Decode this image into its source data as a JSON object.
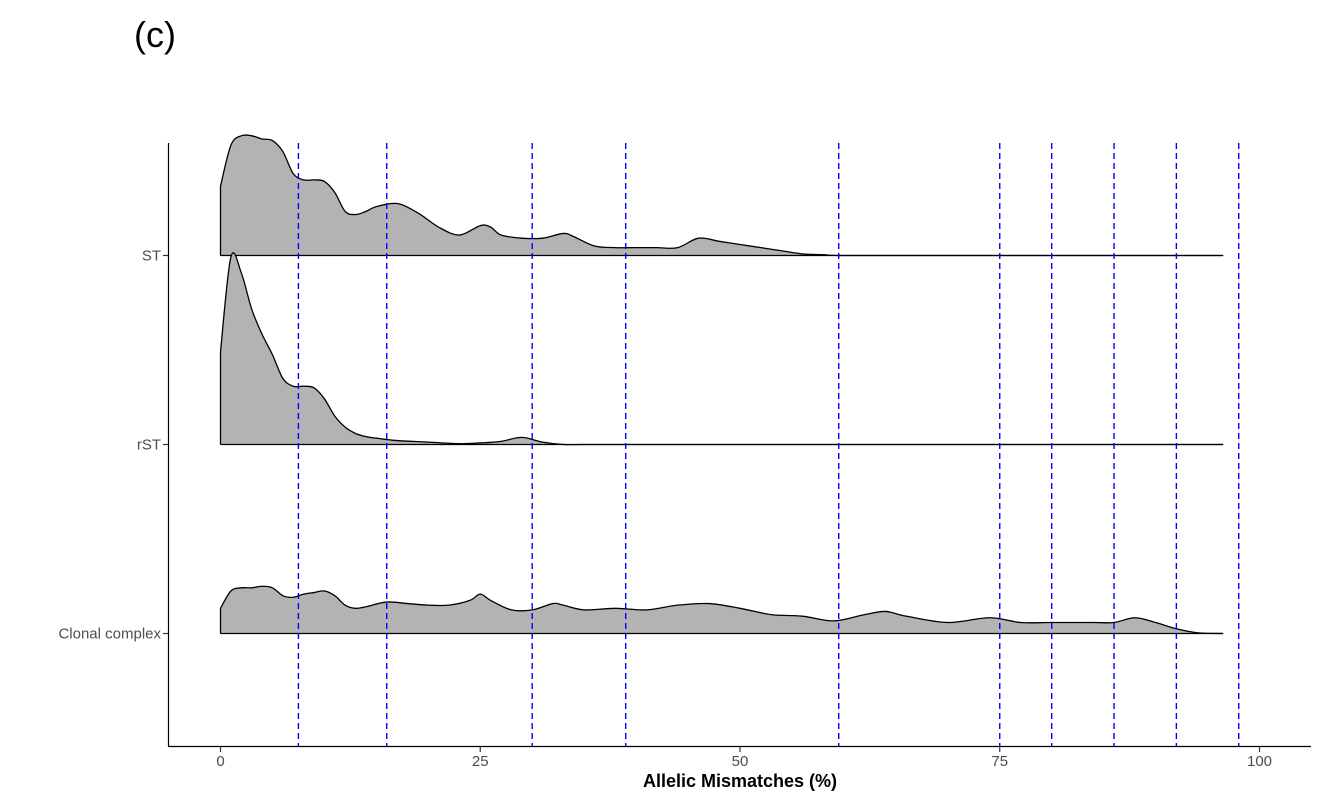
{
  "panel_label": "(c)",
  "chart_data": {
    "type": "ridgeline",
    "title": "",
    "xlabel": "Allelic Mismatches (%)",
    "ylabel": "",
    "xlim": [
      -10,
      105
    ],
    "x_ticks": [
      0,
      25,
      50,
      75,
      100
    ],
    "x_tick_labels": [
      "0",
      "25",
      "50",
      "75",
      "100"
    ],
    "categories": [
      "ST",
      "rST",
      "Clonal complex"
    ],
    "fill_color": "#b3b3b3",
    "line_color": "#000000",
    "grid": false,
    "legend": "none",
    "threshold_color": "#0000ff",
    "thresholds": [
      7.5,
      16,
      30,
      39,
      59.5,
      75,
      80,
      86,
      92,
      98
    ],
    "series": [
      {
        "name": "ST",
        "x": [
          0,
          1,
          2,
          3,
          4,
          5,
          6,
          7,
          8,
          9,
          10,
          11,
          12,
          13,
          14,
          15,
          17,
          19,
          21,
          23,
          25,
          26,
          27,
          29,
          31,
          33,
          34,
          36,
          38,
          40,
          42,
          44,
          46,
          48,
          50,
          52,
          54,
          56,
          58,
          60,
          70,
          80,
          90,
          96.5
        ],
        "y": [
          0.44,
          0.7,
          0.76,
          0.76,
          0.74,
          0.73,
          0.66,
          0.52,
          0.48,
          0.48,
          0.47,
          0.4,
          0.28,
          0.26,
          0.28,
          0.31,
          0.33,
          0.27,
          0.18,
          0.13,
          0.19,
          0.18,
          0.13,
          0.11,
          0.11,
          0.14,
          0.12,
          0.06,
          0.05,
          0.05,
          0.05,
          0.05,
          0.11,
          0.09,
          0.07,
          0.05,
          0.03,
          0.01,
          0.005,
          0.0,
          0.0,
          0.0,
          0.0,
          0.0
        ]
      },
      {
        "name": "rST",
        "x": [
          0,
          1,
          2,
          3,
          4,
          5,
          6,
          7,
          8,
          9,
          10,
          11,
          12,
          13,
          14,
          15,
          17,
          20,
          23,
          25,
          27,
          29,
          31,
          33,
          35,
          40,
          50,
          60,
          75,
          90,
          96.5
        ],
        "y": [
          0.59,
          1.19,
          1.09,
          0.86,
          0.7,
          0.57,
          0.42,
          0.37,
          0.37,
          0.36,
          0.29,
          0.18,
          0.11,
          0.07,
          0.05,
          0.04,
          0.025,
          0.015,
          0.005,
          0.01,
          0.02,
          0.045,
          0.015,
          0.0,
          0.0,
          0.0,
          0.0,
          0.0,
          0.0,
          0.0,
          0.0
        ]
      },
      {
        "name": "Clonal complex",
        "x": [
          0,
          1,
          2,
          3,
          4,
          5,
          6,
          7,
          8,
          9,
          10,
          11,
          12,
          13,
          14,
          16,
          18,
          20,
          22,
          24,
          25,
          26,
          28,
          30,
          32,
          33,
          35,
          38,
          41,
          44,
          47,
          50,
          53,
          56,
          59,
          62,
          64,
          66,
          70,
          74,
          77,
          80,
          84,
          86,
          88,
          90,
          92,
          94,
          96.5
        ],
        "y": [
          0.16,
          0.27,
          0.29,
          0.29,
          0.3,
          0.29,
          0.24,
          0.23,
          0.25,
          0.26,
          0.27,
          0.24,
          0.18,
          0.16,
          0.17,
          0.2,
          0.19,
          0.18,
          0.18,
          0.21,
          0.25,
          0.21,
          0.15,
          0.15,
          0.19,
          0.18,
          0.15,
          0.16,
          0.15,
          0.18,
          0.19,
          0.16,
          0.12,
          0.11,
          0.08,
          0.12,
          0.14,
          0.11,
          0.07,
          0.1,
          0.07,
          0.07,
          0.07,
          0.07,
          0.1,
          0.07,
          0.03,
          0.005,
          0.0
        ]
      }
    ]
  }
}
